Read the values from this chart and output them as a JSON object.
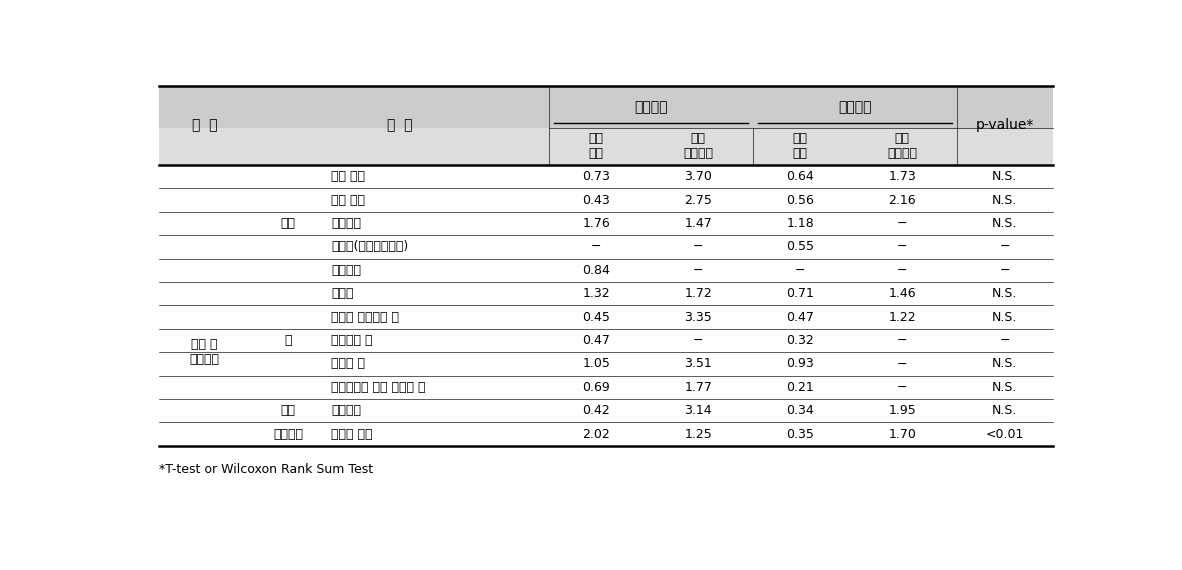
{
  "footnote": "*T-test or Wilcoxon Rank Sum Test",
  "col3_labels": [
    "톱밥 먹지",
    "도로 먹지",
    "유리섬유",
    "실리카(샌드블라스팅)",
    "광산먹지",
    "용접휘",
    "납낙과 플럭스의 휘",
    "프라스틱 휘",
    "페인트 휘",
    "가솔린이나 디젤 연료의 휘",
    "유기용제",
    "본드나 레진"
  ],
  "data": [
    [
      "0.73",
      "3.70",
      "0.64",
      "1.73",
      "N.S."
    ],
    [
      "0.43",
      "2.75",
      "0.56",
      "2.16",
      "N.S."
    ],
    [
      "1.76",
      "1.47",
      "1.18",
      "−",
      "N.S."
    ],
    [
      "−",
      "−",
      "0.55",
      "−",
      "−"
    ],
    [
      "0.84",
      "−",
      "−",
      "−",
      "−"
    ],
    [
      "1.32",
      "1.72",
      "0.71",
      "1.46",
      "N.S."
    ],
    [
      "0.45",
      "3.35",
      "0.47",
      "1.22",
      "N.S."
    ],
    [
      "0.47",
      "−",
      "0.32",
      "−",
      "−"
    ],
    [
      "1.05",
      "3.51",
      "0.93",
      "−",
      "N.S."
    ],
    [
      "0.69",
      "1.77",
      "0.21",
      "−",
      "N.S."
    ],
    [
      "0.42",
      "3.14",
      "0.34",
      "1.95",
      "N.S."
    ],
    [
      "2.02",
      "1.25",
      "0.35",
      "1.70",
      "<0.01"
    ]
  ],
  "line_color": "#000000",
  "text_color": "#000000",
  "header_bg": "#cccccc",
  "subheader_bg": "#dddddd"
}
